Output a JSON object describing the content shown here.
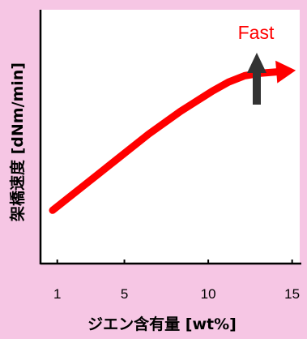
{
  "chart_data": {
    "type": "line",
    "xlabel": "ジエン含有量 [wt%]",
    "ylabel": "架橋速度 [dNm/min]",
    "x_ticks": [
      1,
      5,
      10,
      15
    ],
    "xlim": [
      0,
      15.5
    ],
    "ylim": [
      0,
      10
    ],
    "grid": false,
    "series": [
      {
        "color": "#ff0000",
        "x": [
          0,
          2,
          4,
          6,
          8,
          10,
          11,
          12,
          13,
          14,
          15
        ],
        "y": [
          2.1,
          3.1,
          4.1,
          5.1,
          6.0,
          6.8,
          7.15,
          7.4,
          7.5,
          7.55,
          7.6
        ]
      }
    ],
    "annotation": {
      "text": "Fast",
      "color": "#ff0000",
      "arrow_direction": "up",
      "arrow_color": "#333333"
    }
  }
}
